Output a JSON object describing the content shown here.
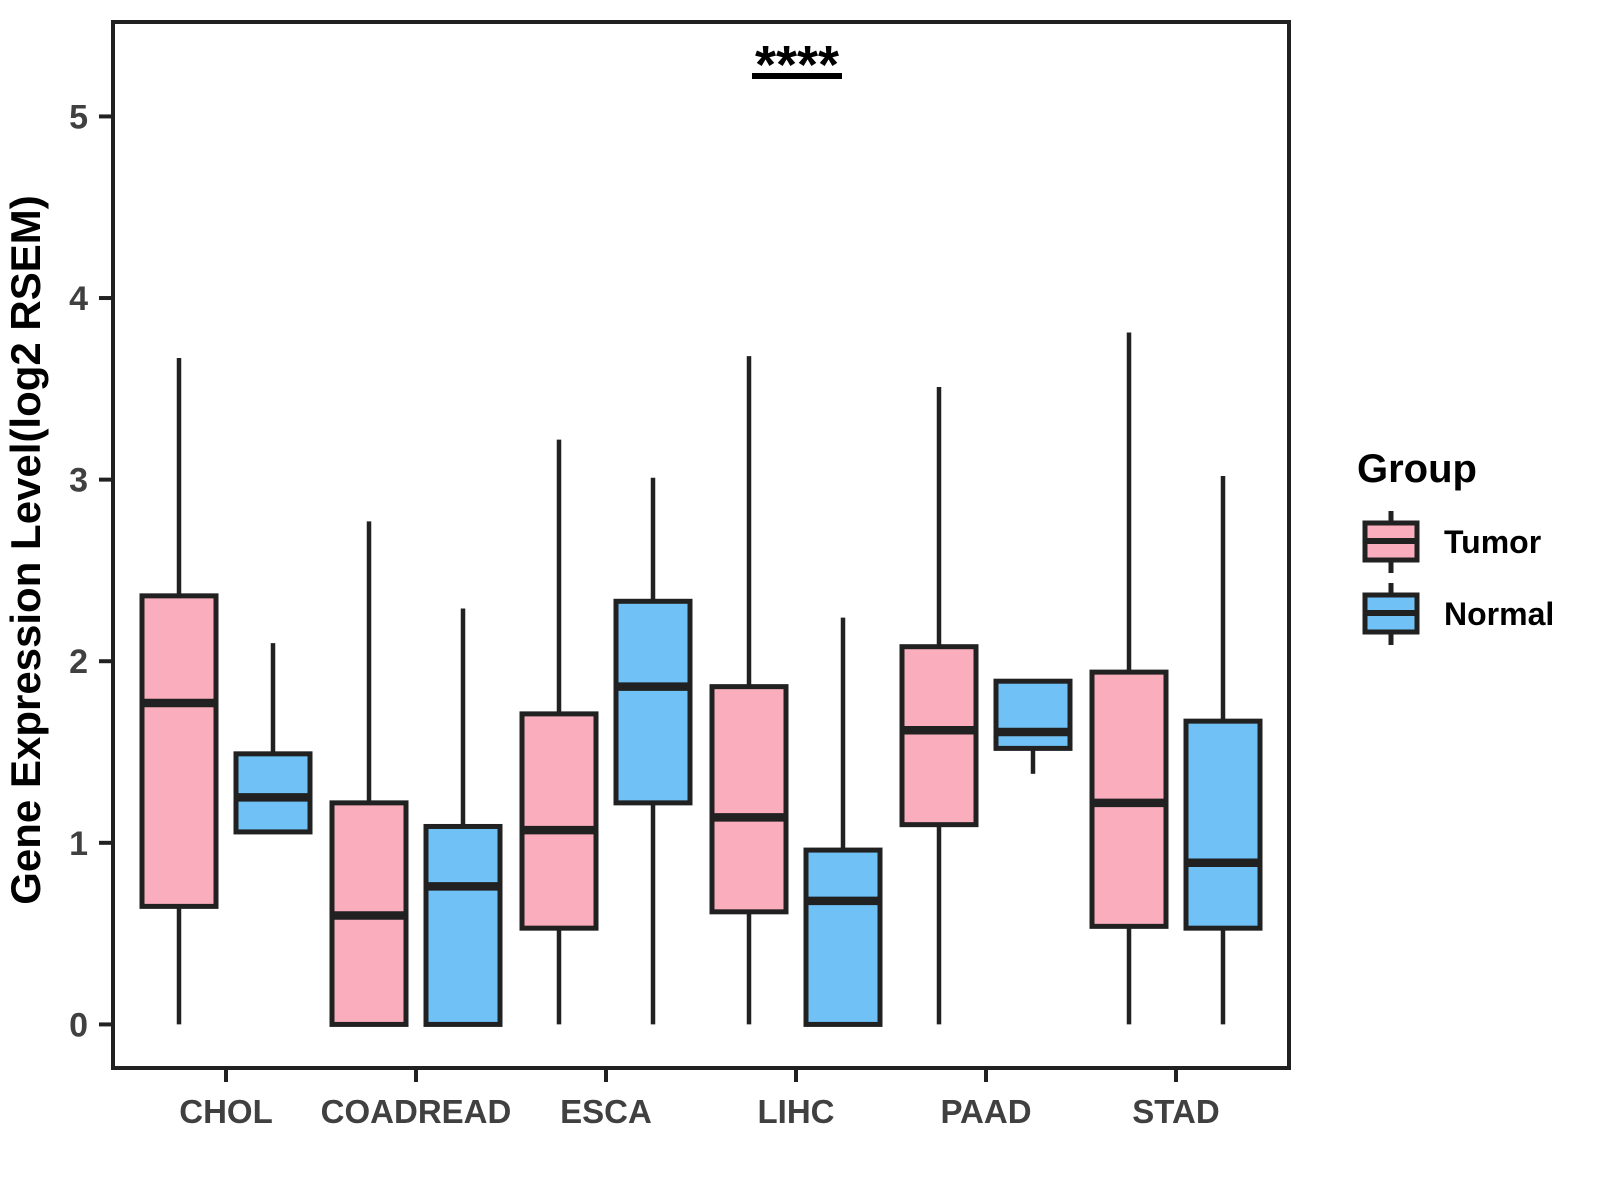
{
  "chart_data": {
    "type": "boxplot",
    "title": "",
    "xlabel": "",
    "ylabel": "Gene Expression Level(log2 RSEM)",
    "categories": [
      "CHOL",
      "COADREAD",
      "ESCA",
      "LIHC",
      "PAAD",
      "STAD"
    ],
    "yticks": [
      0,
      1,
      2,
      3,
      4,
      5
    ],
    "ylim": [
      -0.24,
      5.52
    ],
    "grid": false,
    "panel_border": true,
    "series": [
      {
        "name": "Tumor",
        "color": "#FAAEBD",
        "stats": [
          {
            "low": 0,
            "q1": 0.65,
            "median": 1.77,
            "q3": 2.36,
            "high": 3.67
          },
          {
            "low": 0,
            "q1": 0.0,
            "median": 0.6,
            "q3": 1.22,
            "high": 2.77
          },
          {
            "low": 0,
            "q1": 0.53,
            "median": 1.07,
            "q3": 1.71,
            "high": 3.22
          },
          {
            "low": 0,
            "q1": 0.62,
            "median": 1.14,
            "q3": 1.86,
            "high": 3.68
          },
          {
            "low": 0,
            "q1": 1.1,
            "median": 1.62,
            "q3": 2.08,
            "high": 3.51
          },
          {
            "low": 0,
            "q1": 0.54,
            "median": 1.22,
            "q3": 1.94,
            "high": 3.81
          }
        ]
      },
      {
        "name": "Normal",
        "color": "#70C2F6",
        "stats": [
          {
            "low": 1.06,
            "q1": 1.06,
            "median": 1.25,
            "q3": 1.49,
            "high": 2.1
          },
          {
            "low": 0,
            "q1": 0.0,
            "median": 0.76,
            "q3": 1.09,
            "high": 2.29
          },
          {
            "low": 0,
            "q1": 1.22,
            "median": 1.86,
            "q3": 2.33,
            "high": 3.01
          },
          {
            "low": 0,
            "q1": 0.0,
            "median": 0.68,
            "q3": 0.96,
            "high": 2.24
          },
          {
            "low": 1.38,
            "q1": 1.52,
            "median": 1.61,
            "q3": 1.89,
            "high": 1.89
          },
          {
            "low": 0,
            "q1": 0.53,
            "median": 0.89,
            "q3": 1.67,
            "high": 3.02
          }
        ]
      }
    ],
    "annotation": {
      "text": "****",
      "category": "LIHC",
      "y": 5.22
    },
    "legend": {
      "title": "Group",
      "position": "right"
    },
    "line_color": "#212121"
  }
}
